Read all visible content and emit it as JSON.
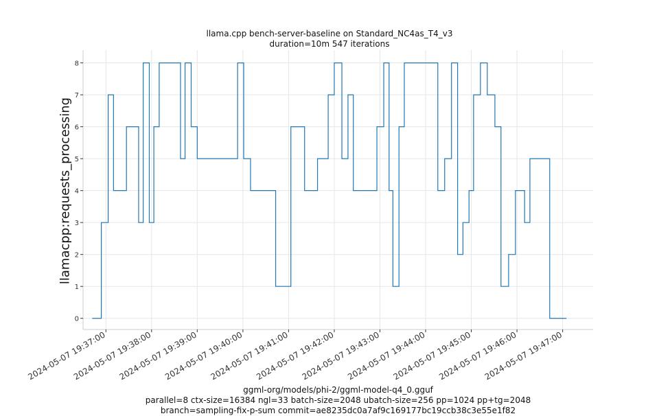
{
  "chart_data": {
    "type": "line",
    "title": "llama.cpp bench-server-baseline on Standard_NC4as_T4_v3",
    "subtitle": "duration=10m 547 iterations",
    "ylabel": "llamacpp:requests_processing",
    "xlabel_lines": [
      "ggml-org/models/phi-2/ggml-model-q4_0.gguf",
      "parallel=8 ctx-size=16384 ngl=33 batch-size=2048 ubatch-size=256 pp=1024 pp+tg=2048",
      "branch=sampling-fix-p-sum commit=ae8235dc0a7af9c169177bc19ccb38c3e55e1f82"
    ],
    "ylim": [
      -0.35,
      8.4
    ],
    "yticks": [
      0,
      1,
      2,
      3,
      4,
      5,
      6,
      7,
      8
    ],
    "xlim": [
      "2024-05-07 19:36:30",
      "2024-05-07 19:47:40"
    ],
    "xticks": [
      "2024-05-07 19:37:00",
      "2024-05-07 19:38:00",
      "2024-05-07 19:39:00",
      "2024-05-07 19:40:00",
      "2024-05-07 19:41:00",
      "2024-05-07 19:42:00",
      "2024-05-07 19:43:00",
      "2024-05-07 19:44:00",
      "2024-05-07 19:45:00",
      "2024-05-07 19:46:00",
      "2024-05-07 19:47:00"
    ],
    "grid": true,
    "line_color": "#1f77b4",
    "series": [
      {
        "step": true,
        "x": [
          "2024-05-07 19:36:42",
          "2024-05-07 19:36:54",
          "2024-05-07 19:36:56",
          "2024-05-07 19:37:03",
          "2024-05-07 19:37:10",
          "2024-05-07 19:37:27",
          "2024-05-07 19:37:34",
          "2024-05-07 19:37:43",
          "2024-05-07 19:37:49",
          "2024-05-07 19:37:57",
          "2024-05-07 19:38:03",
          "2024-05-07 19:38:10",
          "2024-05-07 19:38:20",
          "2024-05-07 19:38:38",
          "2024-05-07 19:38:44",
          "2024-05-07 19:38:52",
          "2024-05-07 19:38:58",
          "2024-05-07 19:39:00",
          "2024-05-07 19:39:04",
          "2024-05-07 19:39:12",
          "2024-05-07 19:39:16",
          "2024-05-07 19:39:27",
          "2024-05-07 19:39:53",
          "2024-05-07 19:40:01",
          "2024-05-07 19:40:10",
          "2024-05-07 19:40:33",
          "2024-05-07 19:40:36",
          "2024-05-07 19:40:43",
          "2024-05-07 19:41:03",
          "2024-05-07 19:41:21",
          "2024-05-07 19:41:38",
          "2024-05-07 19:41:46",
          "2024-05-07 19:41:52",
          "2024-05-07 19:42:00",
          "2024-05-07 19:42:10",
          "2024-05-07 19:42:18",
          "2024-05-07 19:42:25",
          "2024-05-07 19:42:34",
          "2024-05-07 19:42:56",
          "2024-05-07 19:43:05",
          "2024-05-07 19:43:12",
          "2024-05-07 19:43:17",
          "2024-05-07 19:43:25",
          "2024-05-07 19:43:32",
          "2024-05-07 19:43:41",
          "2024-05-07 19:44:07",
          "2024-05-07 19:44:16",
          "2024-05-07 19:44:25",
          "2024-05-07 19:44:34",
          "2024-05-07 19:44:42",
          "2024-05-07 19:44:49",
          "2024-05-07 19:44:57",
          "2024-05-07 19:45:03",
          "2024-05-07 19:45:12",
          "2024-05-07 19:45:21",
          "2024-05-07 19:45:31",
          "2024-05-07 19:45:39",
          "2024-05-07 19:45:49",
          "2024-05-07 19:45:58",
          "2024-05-07 19:46:04",
          "2024-05-07 19:46:10",
          "2024-05-07 19:46:17",
          "2024-05-07 19:46:34",
          "2024-05-07 19:46:43",
          "2024-05-07 19:46:59",
          "2024-05-07 19:47:05"
        ],
        "values": [
          0,
          3,
          3,
          7,
          4,
          6,
          6,
          3,
          8,
          3,
          6,
          8,
          8,
          5,
          8,
          6,
          6,
          5,
          5,
          5,
          5,
          5,
          8,
          5,
          4,
          4,
          4,
          1,
          6,
          4,
          5,
          5,
          7,
          8,
          5,
          7,
          4,
          4,
          6,
          8,
          4,
          1,
          6,
          8,
          8,
          8,
          4,
          5,
          8,
          2,
          3,
          4,
          7,
          8,
          7,
          6,
          1,
          2,
          4,
          4,
          3,
          5,
          5,
          0,
          0,
          0
        ]
      }
    ]
  }
}
